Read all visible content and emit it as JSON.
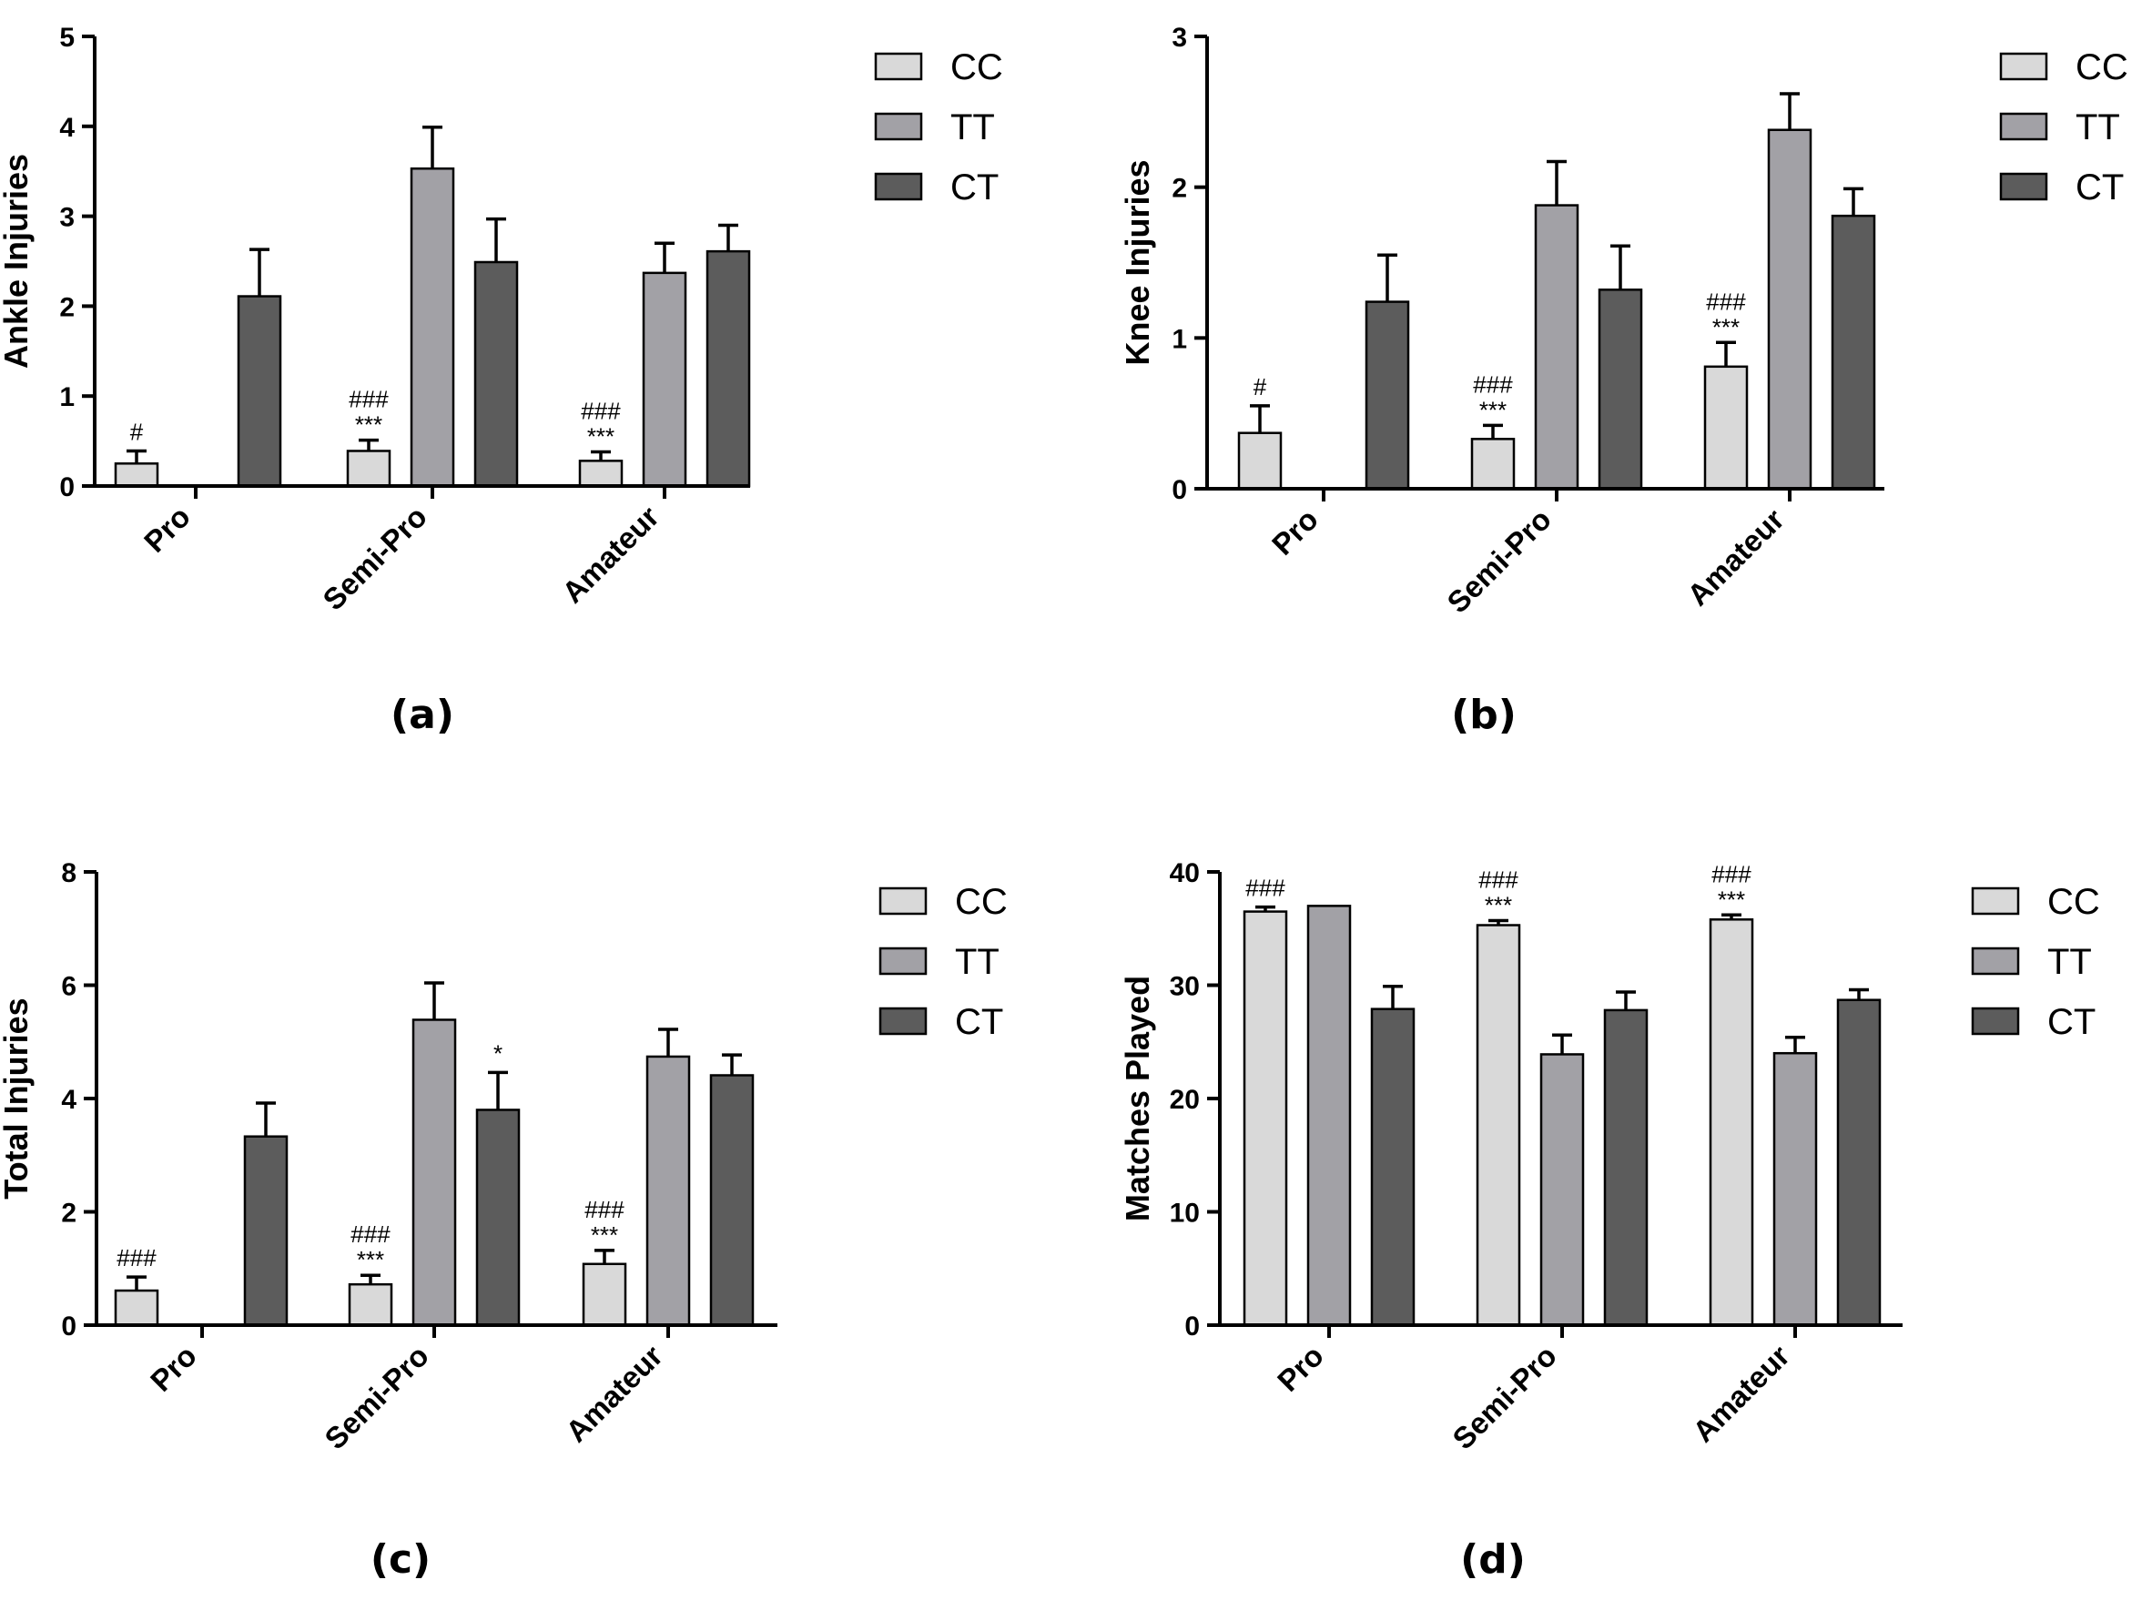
{
  "colors": {
    "CC": "#d9d9d9",
    "TT": "#a2a1a6",
    "CT": "#5c5c5c",
    "axis": "#000000"
  },
  "chart_data": [
    {
      "type": "bar",
      "panel": "(a)",
      "ylabel": "Ankle Injuries",
      "ylim": [
        0,
        5
      ],
      "yticks": [
        "0",
        "1",
        "2",
        "3",
        "4",
        "5"
      ],
      "categories": [
        "Pro",
        "Semi-Pro",
        "Amateur"
      ],
      "legend": [
        "CC",
        "TT",
        "CT"
      ],
      "series": [
        {
          "name": "CC",
          "values": [
            0.25,
            0.39,
            0.28
          ],
          "errors": [
            0.14,
            0.12,
            0.1
          ],
          "sig_top": [
            "#",
            "###",
            "###"
          ],
          "sig_bottom": [
            "",
            "***",
            "***"
          ]
        },
        {
          "name": "TT",
          "values": [
            0,
            3.53,
            2.37
          ],
          "errors": [
            0,
            0.46,
            0.33
          ],
          "sig_top": [
            "",
            "",
            ""
          ],
          "sig_bottom": [
            "",
            "",
            ""
          ]
        },
        {
          "name": "CT",
          "values": [
            2.11,
            2.49,
            2.61
          ],
          "errors": [
            0.52,
            0.48,
            0.29
          ],
          "sig_top": [
            "",
            "",
            ""
          ],
          "sig_bottom": [
            "",
            "",
            ""
          ]
        }
      ]
    },
    {
      "type": "bar",
      "panel": "(b)",
      "ylabel": "Knee Injuries",
      "ylim": [
        0,
        3
      ],
      "yticks": [
        "0",
        "1",
        "2",
        "3"
      ],
      "categories": [
        "Pro",
        "Semi-Pro",
        "Amateur"
      ],
      "legend": [
        "CC",
        "TT",
        "CT"
      ],
      "series": [
        {
          "name": "CC",
          "values": [
            0.37,
            0.33,
            0.81
          ],
          "errors": [
            0.18,
            0.09,
            0.16
          ],
          "sig_top": [
            "#",
            "###",
            "###"
          ],
          "sig_bottom": [
            "",
            "***",
            "***"
          ]
        },
        {
          "name": "TT",
          "values": [
            0,
            1.88,
            2.38
          ],
          "errors": [
            0,
            0.29,
            0.24
          ],
          "sig_top": [
            "",
            "",
            ""
          ],
          "sig_bottom": [
            "",
            "",
            ""
          ]
        },
        {
          "name": "CT",
          "values": [
            1.24,
            1.32,
            1.81
          ],
          "errors": [
            0.31,
            0.29,
            0.18
          ],
          "sig_top": [
            "",
            "",
            ""
          ],
          "sig_bottom": [
            "",
            "",
            ""
          ]
        }
      ]
    },
    {
      "type": "bar",
      "panel": "(c)",
      "ylabel": "Total Injuries",
      "ylim": [
        0,
        8
      ],
      "yticks": [
        "0",
        "2",
        "4",
        "6",
        "8"
      ],
      "categories": [
        "Pro",
        "Semi-Pro",
        "Amateur"
      ],
      "legend": [
        "CC",
        "TT",
        "CT"
      ],
      "series": [
        {
          "name": "CC",
          "values": [
            0.61,
            0.72,
            1.08
          ],
          "errors": [
            0.24,
            0.16,
            0.24
          ],
          "sig_top": [
            "###",
            "###",
            "###"
          ],
          "sig_bottom": [
            "",
            "***",
            "***"
          ]
        },
        {
          "name": "TT",
          "values": [
            0,
            5.39,
            4.74
          ],
          "errors": [
            0,
            0.65,
            0.48
          ],
          "sig_top": [
            "",
            "",
            ""
          ],
          "sig_bottom": [
            "",
            "",
            ""
          ]
        },
        {
          "name": "CT",
          "values": [
            3.33,
            3.8,
            4.41
          ],
          "errors": [
            0.59,
            0.66,
            0.36
          ],
          "sig_top": [
            "",
            "*",
            ""
          ],
          "sig_bottom": [
            "",
            "",
            ""
          ]
        }
      ]
    },
    {
      "type": "bar",
      "panel": "(d)",
      "ylabel": "Matches Played",
      "ylim": [
        0,
        40
      ],
      "yticks": [
        "0",
        "10",
        "20",
        "30",
        "40"
      ],
      "categories": [
        "Pro",
        "Semi-Pro",
        "Amateur"
      ],
      "legend": [
        "CC",
        "TT",
        "CT"
      ],
      "series": [
        {
          "name": "CC",
          "values": [
            36.5,
            35.3,
            35.8
          ],
          "errors": [
            0.4,
            0.4,
            0.4
          ],
          "sig_top": [
            "###",
            "###",
            "###"
          ],
          "sig_bottom": [
            "",
            "***",
            "***"
          ]
        },
        {
          "name": "TT",
          "values": [
            37.0,
            23.9,
            24.0
          ],
          "errors": [
            0,
            1.7,
            1.4
          ],
          "sig_top": [
            "",
            "",
            ""
          ],
          "sig_bottom": [
            "",
            "",
            ""
          ]
        },
        {
          "name": "CT",
          "values": [
            27.9,
            27.8,
            28.7
          ],
          "errors": [
            2.0,
            1.6,
            0.9
          ],
          "sig_top": [
            "",
            "",
            ""
          ],
          "sig_bottom": [
            "",
            "",
            ""
          ]
        }
      ]
    }
  ]
}
